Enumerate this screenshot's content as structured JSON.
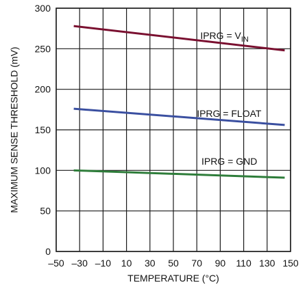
{
  "chart_data": {
    "type": "line",
    "xlabel": "TEMPERATURE (°C)",
    "ylabel": "MAXIMUM SENSE THRESHOLD (mV)",
    "xlim": [
      -50,
      150
    ],
    "ylim": [
      0,
      300
    ],
    "xticks": [
      -50,
      -30,
      -10,
      10,
      30,
      50,
      70,
      90,
      110,
      130,
      150
    ],
    "xtick_labels": [
      "–50",
      "–30",
      "–10",
      "10",
      "30",
      "50",
      "70",
      "90",
      "110",
      "130",
      "150"
    ],
    "yticks": [
      0,
      50,
      100,
      150,
      200,
      250,
      300
    ],
    "ytick_labels": [
      "0",
      "50",
      "100",
      "150",
      "200",
      "250",
      "300"
    ],
    "grid": true,
    "series": [
      {
        "label_main": "IPRG = V",
        "label_sub": "IN",
        "label_x": 73,
        "label_y": 262,
        "color": "#7a1030",
        "x": [
          -35,
          145
        ],
        "y": [
          278,
          248
        ]
      },
      {
        "label_main": "IPRG = FLOAT",
        "label_sub": "",
        "label_x": 70,
        "label_y": 166,
        "color": "#3a4fa0",
        "x": [
          -35,
          145
        ],
        "y": [
          176,
          156
        ]
      },
      {
        "label_main": "IPRG = GND",
        "label_sub": "",
        "label_x": 74,
        "label_y": 107,
        "color": "#2e7d3a",
        "x": [
          -35,
          145
        ],
        "y": [
          100,
          91
        ]
      }
    ]
  }
}
